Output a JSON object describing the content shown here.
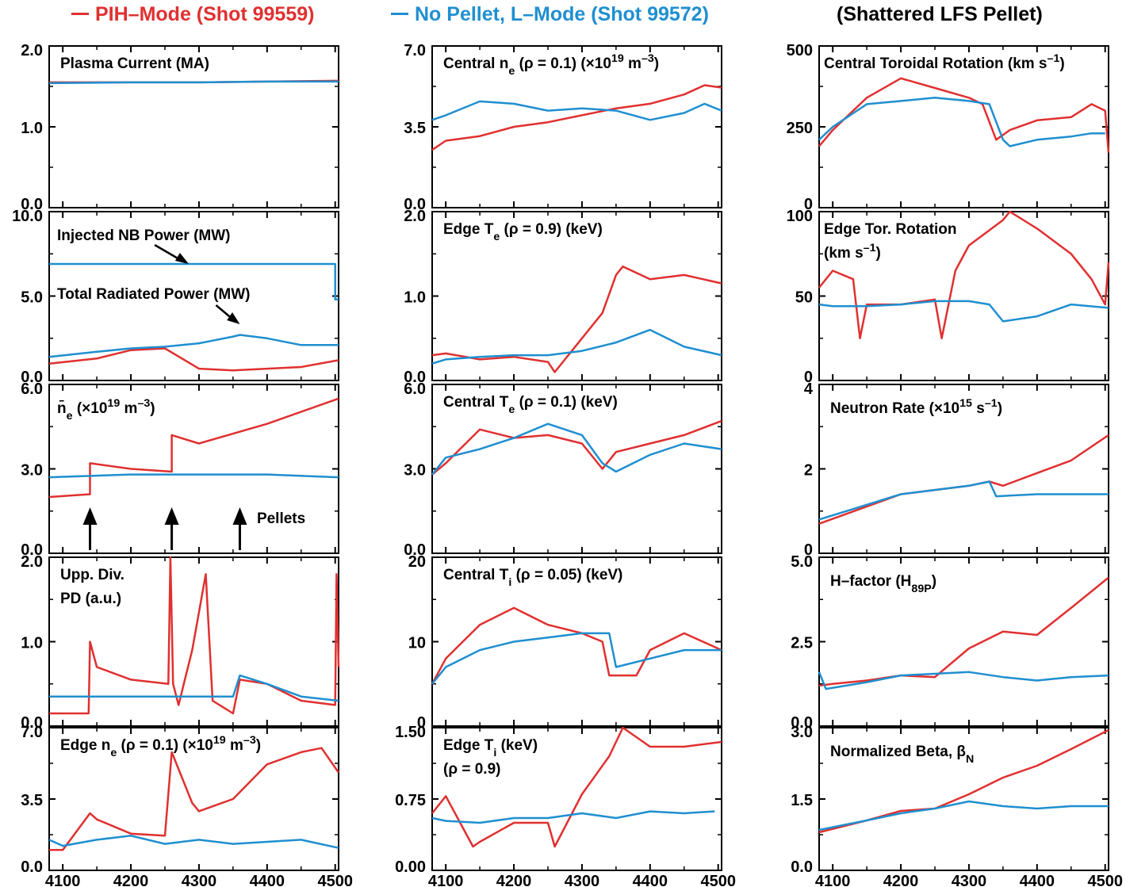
{
  "legend": {
    "pih_label": "PIH–Mode (Shot 99559)",
    "lmode_label": "No Pellet, L–Mode (Shot 99572)",
    "col3_header": "(Shattered LFS Pellet)"
  },
  "colors": {
    "pih": "#e03030",
    "lmode": "#1f8fd0",
    "axis": "#000000"
  },
  "xaxis": {
    "ticks": [
      "4100",
      "4200",
      "4300",
      "4400",
      "4500"
    ],
    "range": [
      4080,
      4505
    ]
  },
  "chart_data": [
    {
      "type": "line",
      "id": "plasma-current",
      "title": "Plasma Current (MA)",
      "ylim": [
        0,
        2
      ],
      "yticks": [
        "2.0",
        "1.0",
        "0.0"
      ],
      "series": [
        {
          "name": "PIH–Mode (Shot 99559)",
          "x": [
            4080,
            4200,
            4300,
            4400,
            4505
          ],
          "y": [
            1.55,
            1.55,
            1.55,
            1.56,
            1.57
          ]
        },
        {
          "name": "No Pellet, L–Mode (Shot 99572)",
          "x": [
            4080,
            4200,
            4300,
            4400,
            4505
          ],
          "y": [
            1.54,
            1.55,
            1.55,
            1.56,
            1.56
          ]
        }
      ]
    },
    {
      "type": "line",
      "id": "central-ne",
      "title": "Central ne (ρ = 0.1) (×10¹⁹ m⁻³)",
      "ylim": [
        0,
        7
      ],
      "yticks": [
        "7.0",
        "3.5",
        "0.0"
      ],
      "series": [
        {
          "name": "PIH–Mode (Shot 99559)",
          "x": [
            4080,
            4100,
            4150,
            4200,
            4250,
            4300,
            4350,
            4400,
            4450,
            4480,
            4505
          ],
          "y": [
            2.5,
            2.9,
            3.1,
            3.5,
            3.7,
            4.0,
            4.3,
            4.5,
            4.9,
            5.3,
            5.2
          ]
        },
        {
          "name": "No Pellet, L–Mode (Shot 99572)",
          "x": [
            4080,
            4100,
            4150,
            4200,
            4250,
            4300,
            4350,
            4400,
            4450,
            4480,
            4505
          ],
          "y": [
            3.8,
            4.0,
            4.6,
            4.5,
            4.2,
            4.3,
            4.2,
            3.8,
            4.1,
            4.5,
            4.2
          ]
        }
      ]
    },
    {
      "type": "line",
      "id": "central-tor-rot",
      "title": "Central Toroidal Rotation (km s⁻¹)",
      "ylim": [
        0,
        500
      ],
      "yticks": [
        "500",
        "250",
        "0"
      ],
      "series": [
        {
          "name": "PIH–Mode (Shot 99559)",
          "x": [
            4080,
            4100,
            4150,
            4200,
            4250,
            4300,
            4320,
            4340,
            4360,
            4400,
            4450,
            4480,
            4500,
            4505
          ],
          "y": [
            190,
            240,
            340,
            400,
            370,
            340,
            320,
            210,
            240,
            270,
            280,
            320,
            300,
            170
          ]
        },
        {
          "name": "No Pellet, L–Mode (Shot 99572)",
          "x": [
            4080,
            4100,
            4150,
            4200,
            4250,
            4300,
            4330,
            4350,
            4360,
            4400,
            4450,
            4480,
            4500
          ],
          "y": [
            210,
            250,
            320,
            330,
            340,
            330,
            320,
            210,
            190,
            210,
            220,
            230,
            230
          ]
        }
      ]
    },
    {
      "type": "line",
      "id": "nb-rad-power",
      "title": "Injected NB Power (MW)",
      "title2": "Total Radiated Power (MW)",
      "ylim": [
        0,
        10
      ],
      "yticks": [
        "10.0",
        "5.0",
        "0.0"
      ],
      "series": [
        {
          "name": "Injected NB Power (MW)",
          "x": [
            4080,
            4500,
            4500,
            4505
          ],
          "y": [
            6.9,
            6.9,
            4.8,
            4.8
          ]
        },
        {
          "name": "Total Radiated Power (MW) (PIH)",
          "x": [
            4080,
            4150,
            4200,
            4250,
            4300,
            4350,
            4400,
            4450,
            4505
          ],
          "y": [
            1.0,
            1.3,
            1.8,
            1.9,
            0.7,
            0.6,
            0.7,
            0.8,
            1.2
          ]
        },
        {
          "name": "Total Radiated Power (MW) (L-mode)",
          "x": [
            4080,
            4150,
            4200,
            4250,
            4300,
            4350,
            4360,
            4400,
            4450,
            4505
          ],
          "y": [
            1.4,
            1.7,
            1.9,
            2.0,
            2.2,
            2.6,
            2.7,
            2.5,
            2.1,
            2.1
          ]
        }
      ]
    },
    {
      "type": "line",
      "id": "edge-te",
      "title": "Edge Te (ρ = 0.9) (keV)",
      "ylim": [
        0,
        2
      ],
      "yticks": [
        "2.0",
        "1.0",
        "0.0"
      ],
      "series": [
        {
          "name": "PIH–Mode (Shot 99559)",
          "x": [
            4080,
            4100,
            4150,
            4200,
            4250,
            4260,
            4300,
            4330,
            4350,
            4360,
            4400,
            4450,
            4505
          ],
          "y": [
            0.3,
            0.32,
            0.25,
            0.28,
            0.22,
            0.1,
            0.5,
            0.8,
            1.25,
            1.35,
            1.2,
            1.25,
            1.15
          ]
        },
        {
          "name": "No Pellet, L–Mode (Shot 99572)",
          "x": [
            4080,
            4100,
            4150,
            4200,
            4250,
            4300,
            4350,
            4400,
            4450,
            4505
          ],
          "y": [
            0.2,
            0.25,
            0.28,
            0.3,
            0.3,
            0.35,
            0.45,
            0.6,
            0.4,
            0.3
          ]
        }
      ]
    },
    {
      "type": "line",
      "id": "edge-tor-rot",
      "title": "Edge Tor. Rotation (km s⁻¹)",
      "ylim": [
        0,
        100
      ],
      "yticks": [
        "100",
        "50",
        "0"
      ],
      "series": [
        {
          "name": "PIH–Mode (Shot 99559)",
          "x": [
            4080,
            4100,
            4130,
            4140,
            4150,
            4200,
            4250,
            4260,
            4280,
            4300,
            4350,
            4360,
            4400,
            4450,
            4480,
            4500,
            4505
          ],
          "y": [
            55,
            65,
            60,
            25,
            45,
            45,
            48,
            25,
            65,
            80,
            95,
            100,
            90,
            75,
            60,
            45,
            70
          ]
        },
        {
          "name": "No Pellet, L–Mode (Shot 99572)",
          "x": [
            4080,
            4100,
            4150,
            4200,
            4250,
            4300,
            4330,
            4350,
            4400,
            4450,
            4505
          ],
          "y": [
            45,
            44,
            44,
            45,
            47,
            47,
            45,
            35,
            38,
            45,
            43
          ]
        }
      ]
    },
    {
      "type": "line",
      "id": "ne-bar",
      "title": "n̄e (×10¹⁹ m⁻³)",
      "annotation": "Pellets",
      "pellet_times": [
        4140,
        4260,
        4360
      ],
      "ylim": [
        0,
        6
      ],
      "yticks": [
        "6.0",
        "3.0",
        "0.0"
      ],
      "series": [
        {
          "name": "PIH–Mode (Shot 99559)",
          "x": [
            4080,
            4140,
            4140,
            4200,
            4260,
            4260,
            4300,
            4400,
            4505
          ],
          "y": [
            2.0,
            2.1,
            3.2,
            3.0,
            2.9,
            4.2,
            3.9,
            4.6,
            5.5
          ]
        },
        {
          "name": "No Pellet, L–Mode (Shot 99572)",
          "x": [
            4080,
            4200,
            4300,
            4400,
            4505
          ],
          "y": [
            2.7,
            2.8,
            2.8,
            2.8,
            2.7
          ]
        }
      ]
    },
    {
      "type": "line",
      "id": "central-te",
      "title": "Central Te (ρ = 0.1) (keV)",
      "ylim": [
        0,
        6
      ],
      "yticks": [
        "6.0",
        "3.0",
        "0.0"
      ],
      "series": [
        {
          "name": "PIH–Mode (Shot 99559)",
          "x": [
            4080,
            4100,
            4150,
            4200,
            4250,
            4300,
            4330,
            4350,
            4400,
            4450,
            4505
          ],
          "y": [
            2.8,
            3.2,
            4.4,
            4.1,
            4.2,
            3.9,
            3.0,
            3.6,
            3.9,
            4.2,
            4.7
          ]
        },
        {
          "name": "No Pellet, L–Mode (Shot 99572)",
          "x": [
            4080,
            4100,
            4150,
            4200,
            4250,
            4300,
            4330,
            4350,
            4400,
            4450,
            4505
          ],
          "y": [
            2.8,
            3.4,
            3.7,
            4.1,
            4.6,
            4.2,
            3.2,
            2.9,
            3.5,
            3.9,
            3.7
          ]
        }
      ]
    },
    {
      "type": "line",
      "id": "neutron-rate",
      "title": "Neutron Rate (×10¹⁵ s⁻¹)",
      "ylim": [
        0,
        4
      ],
      "yticks": [
        "4",
        "2",
        "0"
      ],
      "series": [
        {
          "name": "PIH–Mode (Shot 99559)",
          "x": [
            4080,
            4200,
            4300,
            4330,
            4350,
            4400,
            4450,
            4505
          ],
          "y": [
            0.7,
            1.4,
            1.6,
            1.7,
            1.6,
            1.9,
            2.2,
            2.8
          ]
        },
        {
          "name": "No Pellet, L–Mode (Shot 99572)",
          "x": [
            4080,
            4200,
            4300,
            4330,
            4340,
            4400,
            4450,
            4505
          ],
          "y": [
            0.8,
            1.4,
            1.6,
            1.7,
            1.35,
            1.4,
            1.4,
            1.4
          ]
        }
      ]
    },
    {
      "type": "line",
      "id": "upp-div-pd",
      "title": "Upp. Div.",
      "title2": "PD (a.u.)",
      "ylim": [
        0,
        2
      ],
      "yticks": [
        "2.0",
        "1.0",
        "0.0"
      ],
      "series": [
        {
          "name": "PIH–Mode (Shot 99559)",
          "x": [
            4080,
            4138,
            4140,
            4150,
            4200,
            4255,
            4258,
            4262,
            4270,
            4290,
            4310,
            4320,
            4350,
            4360,
            4400,
            4450,
            4500,
            4502,
            4505
          ],
          "y": [
            0.15,
            0.15,
            1.0,
            0.7,
            0.55,
            0.5,
            2.0,
            0.5,
            0.25,
            0.9,
            1.8,
            0.3,
            0.15,
            0.55,
            0.5,
            0.3,
            0.25,
            1.8,
            0.7
          ]
        },
        {
          "name": "No Pellet, L–Mode (Shot 99572)",
          "x": [
            4080,
            4200,
            4300,
            4350,
            4360,
            4400,
            4450,
            4505
          ],
          "y": [
            0.35,
            0.35,
            0.35,
            0.35,
            0.6,
            0.5,
            0.35,
            0.3
          ]
        }
      ]
    },
    {
      "type": "line",
      "id": "central-ti",
      "title": "Central Ti (ρ = 0.05) (keV)",
      "ylim": [
        0,
        20
      ],
      "yticks": [
        "20",
        "10",
        "0"
      ],
      "series": [
        {
          "name": "PIH–Mode (Shot 99559)",
          "x": [
            4080,
            4100,
            4150,
            4200,
            4250,
            4300,
            4330,
            4340,
            4380,
            4400,
            4450,
            4505
          ],
          "y": [
            5,
            8,
            12,
            14,
            12,
            11,
            10,
            6,
            6,
            9,
            11,
            9
          ]
        },
        {
          "name": "No Pellet, L–Mode (Shot 99572)",
          "x": [
            4080,
            4100,
            4150,
            4200,
            4250,
            4300,
            4340,
            4350,
            4400,
            4450,
            4505
          ],
          "y": [
            5,
            7,
            9,
            10,
            10.5,
            11,
            11,
            7,
            8,
            9,
            9
          ]
        }
      ]
    },
    {
      "type": "line",
      "id": "h-factor",
      "title": "H–factor (H89P)",
      "ylim": [
        0,
        5
      ],
      "yticks": [
        "5.0",
        "2.5",
        "0.0"
      ],
      "series": [
        {
          "name": "PIH–Mode (Shot 99559)",
          "x": [
            4080,
            4100,
            4150,
            4200,
            4250,
            4300,
            4350,
            4400,
            4450,
            4505
          ],
          "y": [
            1.2,
            1.25,
            1.35,
            1.5,
            1.45,
            2.3,
            2.8,
            2.7,
            3.5,
            4.4
          ]
        },
        {
          "name": "No Pellet, L–Mode (Shot 99572)",
          "x": [
            4080,
            4090,
            4150,
            4200,
            4250,
            4300,
            4350,
            4400,
            4450,
            4505
          ],
          "y": [
            1.6,
            1.1,
            1.3,
            1.5,
            1.55,
            1.6,
            1.45,
            1.35,
            1.45,
            1.5
          ]
        }
      ]
    },
    {
      "type": "line",
      "id": "edge-ne",
      "title": "Edge ne (ρ = 0.1) (×10¹⁹ m⁻³)",
      "ylim": [
        0,
        7
      ],
      "yticks": [
        "7.0",
        "3.5",
        "0.0"
      ],
      "series": [
        {
          "name": "PIH–Mode (Shot 99559)",
          "x": [
            4080,
            4100,
            4140,
            4150,
            4200,
            4250,
            4260,
            4290,
            4300,
            4350,
            4400,
            4450,
            4480,
            4505
          ],
          "y": [
            1.0,
            1.0,
            2.8,
            2.5,
            1.8,
            1.7,
            5.8,
            3.3,
            2.9,
            3.5,
            5.2,
            5.8,
            6.0,
            4.8
          ]
        },
        {
          "name": "No Pellet, L–Mode (Shot 99572)",
          "x": [
            4080,
            4100,
            4150,
            4200,
            4250,
            4300,
            4350,
            4400,
            4450,
            4505
          ],
          "y": [
            1.5,
            1.2,
            1.5,
            1.7,
            1.3,
            1.5,
            1.3,
            1.4,
            1.5,
            1.1
          ]
        }
      ]
    },
    {
      "type": "line",
      "id": "edge-ti",
      "title": "Edge Ti (keV)",
      "title2": "(ρ = 0.9)",
      "ylim": [
        0,
        1.5
      ],
      "yticks": [
        "1.50",
        "0.75",
        "0.00"
      ],
      "series": [
        {
          "name": "PIH–Mode (Shot 99559)",
          "x": [
            4080,
            4100,
            4140,
            4150,
            4200,
            4250,
            4260,
            4300,
            4340,
            4360,
            4400,
            4450,
            4505
          ],
          "y": [
            0.6,
            0.78,
            0.25,
            0.3,
            0.5,
            0.5,
            0.25,
            0.8,
            1.2,
            1.5,
            1.3,
            1.3,
            1.35
          ]
        },
        {
          "name": "No Pellet, L–Mode (Shot 99572)",
          "x": [
            4080,
            4100,
            4150,
            4200,
            4250,
            4300,
            4350,
            4400,
            4450,
            4495
          ],
          "y": [
            0.55,
            0.52,
            0.5,
            0.55,
            0.55,
            0.6,
            0.55,
            0.62,
            0.6,
            0.62
          ]
        }
      ]
    },
    {
      "type": "line",
      "id": "normalized-beta",
      "title": "Normalized Beta, βN",
      "ylim": [
        0,
        3
      ],
      "yticks": [
        "3.0",
        "1.5",
        "0.0"
      ],
      "series": [
        {
          "name": "PIH–Mode (Shot 99559)",
          "x": [
            4080,
            4150,
            4200,
            4250,
            4300,
            4350,
            4400,
            4450,
            4505
          ],
          "y": [
            0.8,
            1.05,
            1.25,
            1.3,
            1.6,
            1.95,
            2.2,
            2.55,
            2.95
          ]
        },
        {
          "name": "No Pellet, L–Mode (Shot 99572)",
          "x": [
            4080,
            4150,
            4200,
            4250,
            4300,
            4350,
            4400,
            4450,
            4505
          ],
          "y": [
            0.85,
            1.05,
            1.2,
            1.3,
            1.45,
            1.35,
            1.3,
            1.35,
            1.35
          ]
        }
      ]
    }
  ]
}
